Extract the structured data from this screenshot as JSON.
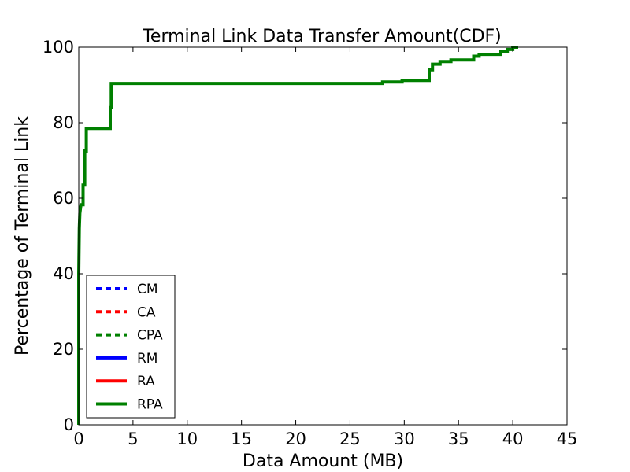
{
  "chart_data": {
    "type": "line",
    "title": "Terminal Link Data Transfer Amount(CDF)",
    "xlabel": "Data Amount (MB)",
    "ylabel": "Percentage of Terminal Link",
    "xlim": [
      0,
      45
    ],
    "ylim": [
      0,
      100
    ],
    "xticks": [
      0,
      5,
      10,
      15,
      20,
      25,
      30,
      35,
      40,
      45
    ],
    "yticks": [
      0,
      20,
      40,
      60,
      80,
      100
    ],
    "grid": false,
    "legend_position": "lower-left",
    "series": [
      {
        "name": "CM",
        "color": "#0000ff",
        "style": "dashed",
        "x": [],
        "y": []
      },
      {
        "name": "CA",
        "color": "#ff0000",
        "style": "dashed",
        "x": [],
        "y": []
      },
      {
        "name": "CPA",
        "color": "#008000",
        "style": "dashed",
        "x": [],
        "y": []
      },
      {
        "name": "RM",
        "color": "#0000ff",
        "style": "solid",
        "x": [],
        "y": []
      },
      {
        "name": "RA",
        "color": "#ff0000",
        "style": "solid",
        "x": [],
        "y": []
      },
      {
        "name": "RPA",
        "color": "#008000",
        "style": "solid",
        "x": [
          0,
          0,
          0.05,
          0.1,
          0.2,
          0.4,
          0.4,
          0.55,
          0.55,
          0.7,
          0.7,
          2.9,
          2.9,
          3.0,
          3.0,
          28.0,
          28.0,
          29.8,
          29.8,
          32.3,
          32.3,
          32.6,
          32.6,
          33.3,
          33.3,
          34.3,
          34.3,
          36.4,
          36.4,
          36.9,
          36.9,
          38.9,
          38.9,
          39.5,
          39.5,
          40.0,
          40.0,
          40.5
        ],
        "y": [
          0,
          40,
          52,
          56,
          58.3,
          58.3,
          63.5,
          63.5,
          72.5,
          72.5,
          78.5,
          78.5,
          84,
          84,
          90.4,
          90.4,
          90.8,
          90.8,
          91.2,
          91.2,
          94,
          94,
          95.5,
          95.5,
          96.2,
          96.2,
          96.6,
          96.6,
          97.6,
          97.6,
          98.1,
          98.1,
          98.8,
          98.8,
          99.4,
          99.4,
          100,
          100
        ]
      }
    ]
  }
}
